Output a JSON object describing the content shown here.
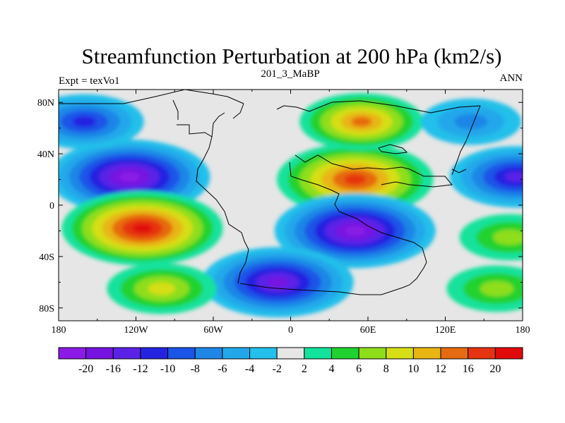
{
  "chart_data": {
    "type": "heatmap",
    "title": "Streamfunction Perturbation at 200 hPa (km2/s)",
    "left_label": "Expt = texVo1",
    "center_label": "201_3_MaBP",
    "right_label": "ANN",
    "x_range": [
      -180,
      180
    ],
    "y_range": [
      -90,
      90
    ],
    "x_ticks": [
      {
        "value": -180,
        "label": "180"
      },
      {
        "value": -120,
        "label": "120W"
      },
      {
        "value": -60,
        "label": "60W"
      },
      {
        "value": 0,
        "label": "0"
      },
      {
        "value": 60,
        "label": "60E"
      },
      {
        "value": 120,
        "label": "120E"
      },
      {
        "value": 180,
        "label": "180"
      }
    ],
    "y_ticks": [
      {
        "value": 80,
        "label": "80N"
      },
      {
        "value": 40,
        "label": "40N"
      },
      {
        "value": 0,
        "label": "0"
      },
      {
        "value": -40,
        "label": "40S"
      },
      {
        "value": -80,
        "label": "80S"
      }
    ],
    "contour_levels": [
      -20,
      -16,
      -12,
      -10,
      -8,
      -6,
      -4,
      -2,
      2,
      4,
      6,
      8,
      10,
      12,
      16,
      20
    ],
    "colorbar_colors": [
      "#8b1ae6",
      "#7613e0",
      "#5a22e6",
      "#2424e0",
      "#1a55e8",
      "#1f86e6",
      "#22a8ea",
      "#22c0ea",
      "#e6e6e6",
      "#12e29b",
      "#20d22f",
      "#8ede1a",
      "#d6de16",
      "#e8b512",
      "#e66b10",
      "#e63410",
      "#e10a0a"
    ],
    "anomaly_centers": [
      {
        "lon": -125,
        "lat": 22,
        "value": -20
      },
      {
        "lon": 175,
        "lat": 22,
        "value": -14
      },
      {
        "lon": 50,
        "lat": 20,
        "value": 19
      },
      {
        "lon": 55,
        "lat": 65,
        "value": 12
      },
      {
        "lon": -160,
        "lat": 65,
        "value": -11
      },
      {
        "lon": 140,
        "lat": 65,
        "value": -7
      },
      {
        "lon": -115,
        "lat": -18,
        "value": 20
      },
      {
        "lon": 50,
        "lat": -20,
        "value": -20
      },
      {
        "lon": -10,
        "lat": -60,
        "value": -18
      },
      {
        "lon": -100,
        "lat": -65,
        "value": 9
      },
      {
        "lon": 170,
        "lat": -25,
        "value": 7
      },
      {
        "lon": 160,
        "lat": -65,
        "value": 7
      }
    ]
  }
}
